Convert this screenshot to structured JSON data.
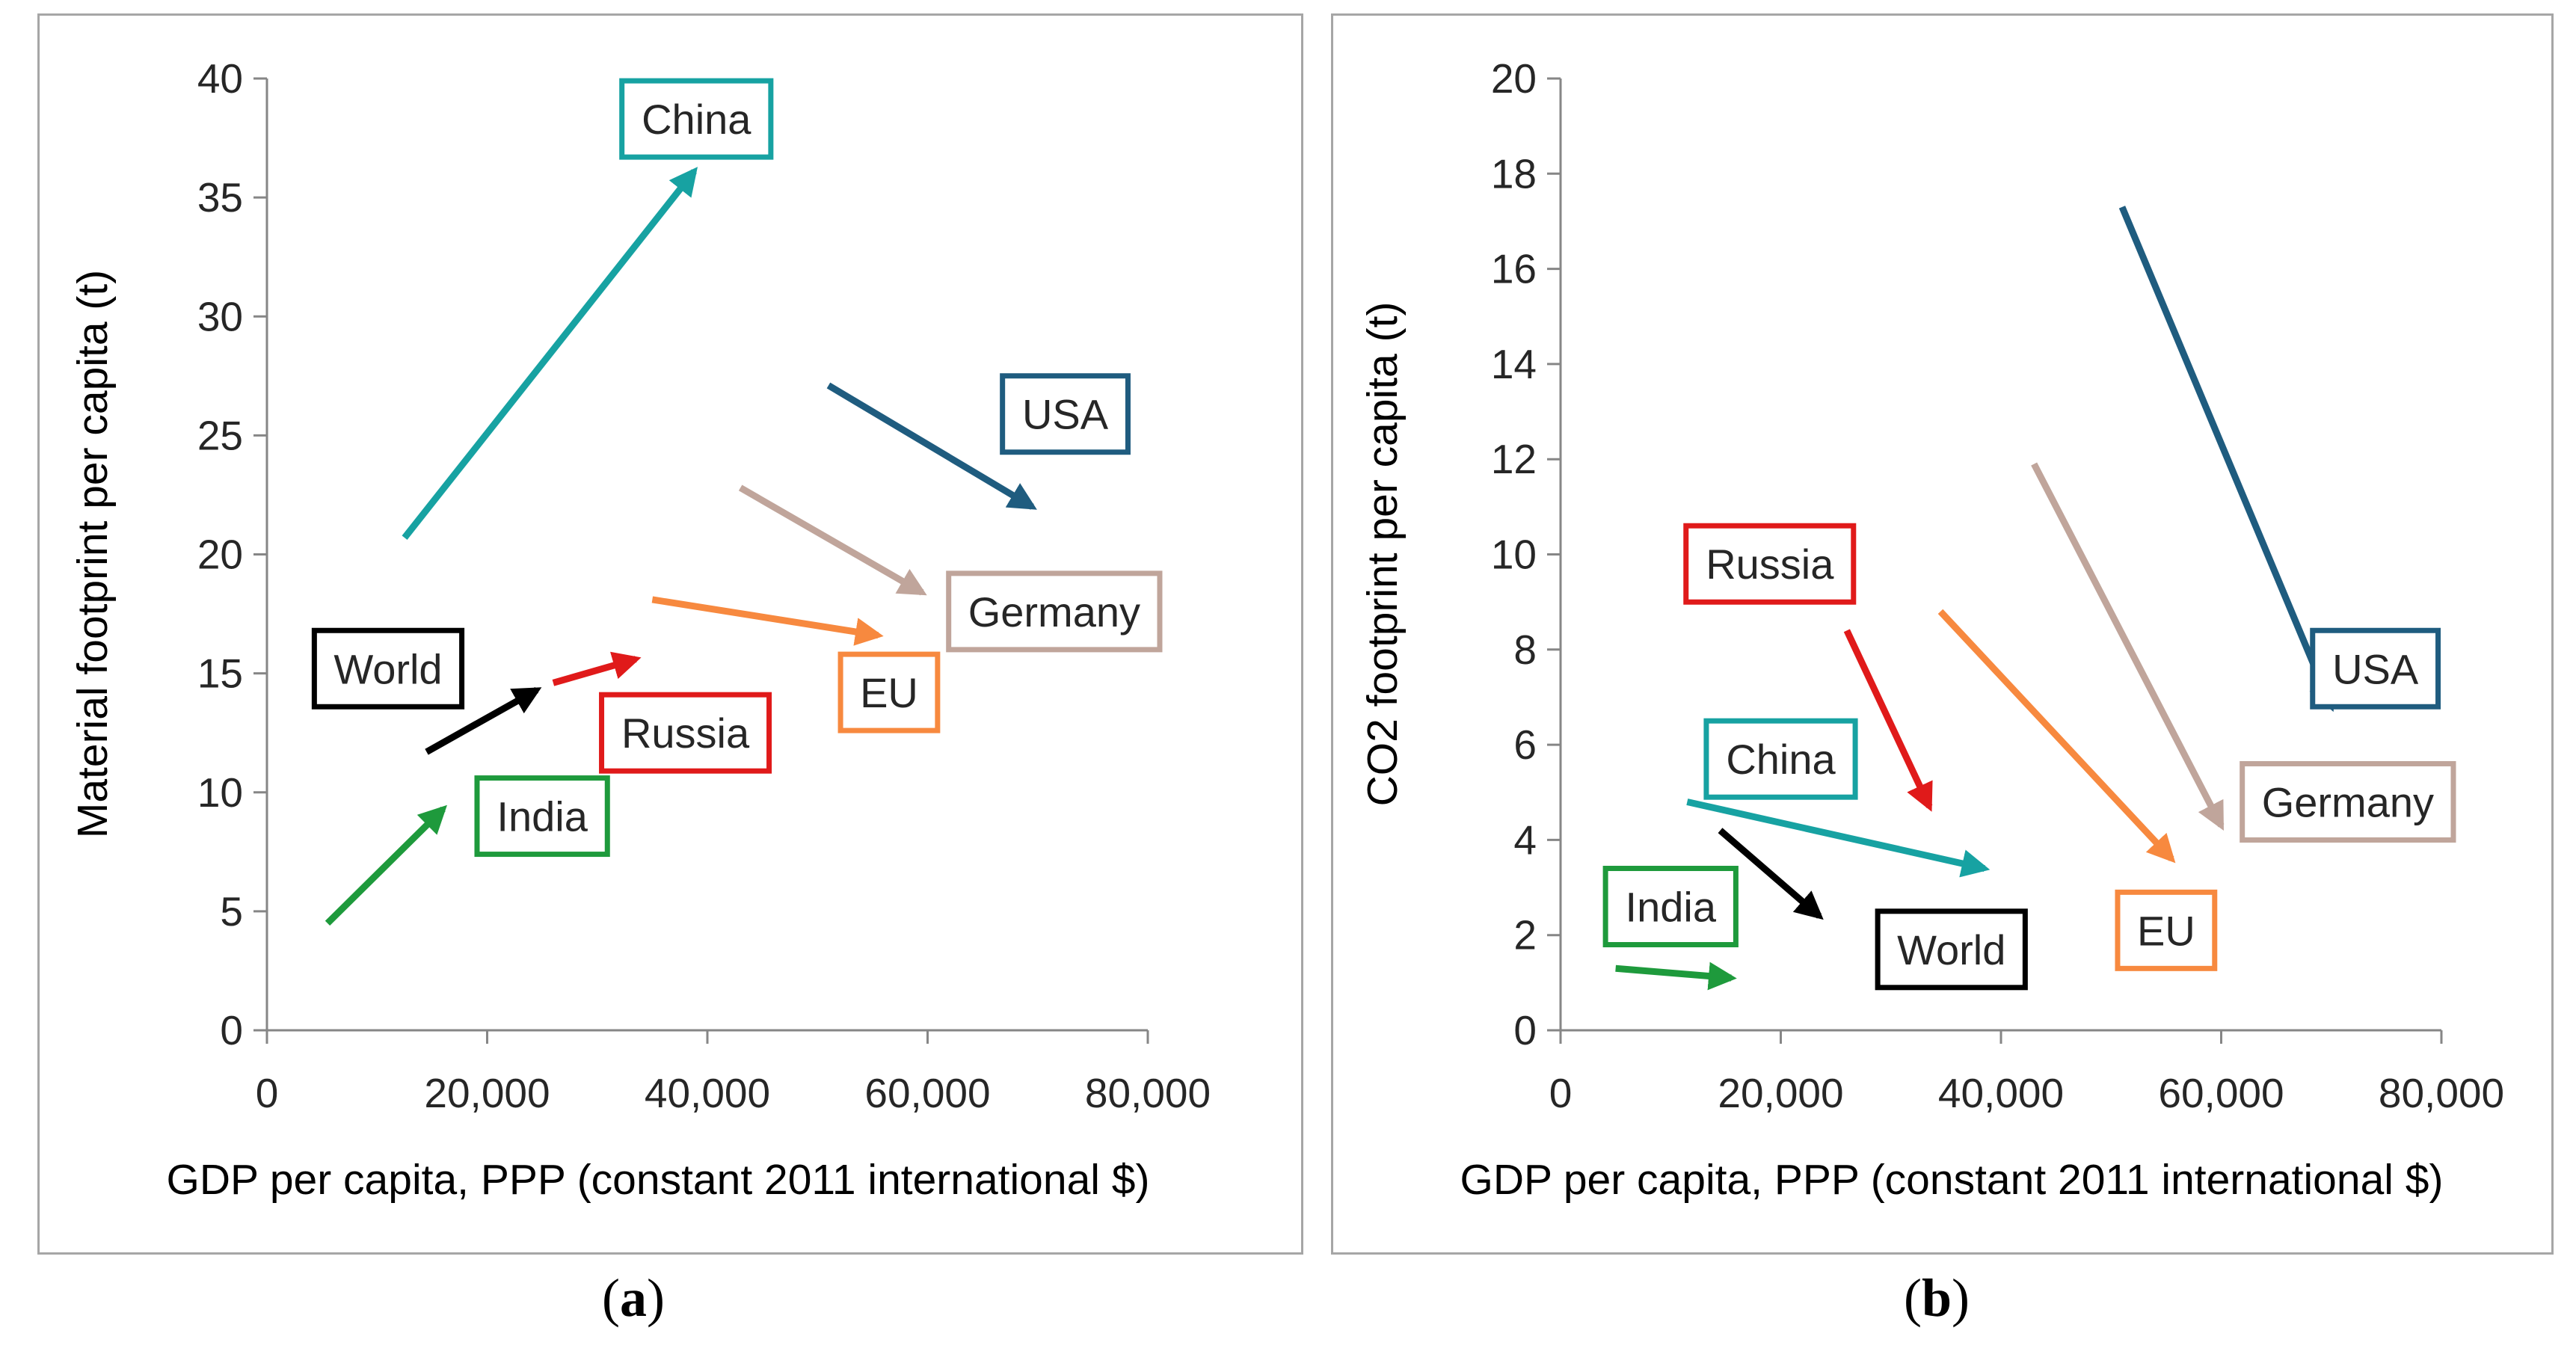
{
  "chart_data": [
    {
      "type": "arrow",
      "panel": "a",
      "caption_letter": "a",
      "xlabel": "GDP per capita, PPP (constant 2011 international $)",
      "ylabel": "Material footprint per capita (t)",
      "xlim": [
        0,
        80000
      ],
      "ylim": [
        0,
        40
      ],
      "x_ticks": [
        0,
        20000,
        40000,
        60000,
        80000
      ],
      "x_tick_labels": [
        "0",
        "20,000",
        "40,000",
        "60,000",
        "80,000"
      ],
      "y_ticks": [
        0,
        5,
        10,
        15,
        20,
        25,
        30,
        35,
        40
      ],
      "y_tick_labels": [
        "0",
        "5",
        "10",
        "15",
        "20",
        "25",
        "30",
        "35",
        "40"
      ],
      "series": [
        {
          "name": "China",
          "color": "#17a2a2",
          "from": [
            12500,
            20.7
          ],
          "to": [
            38800,
            36.1
          ],
          "label_at": [
            39000,
            38.3
          ]
        },
        {
          "name": "USA",
          "color": "#1f5c7f",
          "from": [
            51000,
            27.1
          ],
          "to": [
            69500,
            22.0
          ],
          "label_at": [
            72500,
            25.9
          ]
        },
        {
          "name": "Germany",
          "color": "#c0a59b",
          "from": [
            43000,
            22.8
          ],
          "to": [
            59500,
            18.4
          ],
          "label_at": [
            71500,
            17.6
          ]
        },
        {
          "name": "EU",
          "color": "#f7893f",
          "from": [
            35000,
            18.1
          ],
          "to": [
            55500,
            16.6
          ],
          "label_at": [
            56500,
            14.2
          ]
        },
        {
          "name": "Russia",
          "color": "#e01a1a",
          "from": [
            26000,
            14.6
          ],
          "to": [
            33500,
            15.6
          ],
          "label_at": [
            38000,
            12.5
          ]
        },
        {
          "name": "World",
          "color": "#000000",
          "from": [
            14500,
            11.7
          ],
          "to": [
            24500,
            14.3
          ],
          "label_at": [
            11000,
            15.2
          ]
        },
        {
          "name": "India",
          "color": "#1e9a3c",
          "from": [
            5500,
            4.5
          ],
          "to": [
            16000,
            9.3
          ],
          "label_at": [
            25000,
            9.0
          ]
        }
      ]
    },
    {
      "type": "arrow",
      "panel": "b",
      "caption_letter": "b",
      "xlabel": "GDP per capita, PPP (constant 2011 international $)",
      "ylabel": "CO2 footprint per capita (t)",
      "xlim": [
        0,
        80000
      ],
      "ylim": [
        0,
        20
      ],
      "x_ticks": [
        0,
        20000,
        40000,
        60000,
        80000
      ],
      "x_tick_labels": [
        "0",
        "20,000",
        "40,000",
        "60,000",
        "80,000"
      ],
      "y_ticks": [
        0,
        2,
        4,
        6,
        8,
        10,
        12,
        14,
        16,
        18,
        20
      ],
      "y_tick_labels": [
        "0",
        "2",
        "4",
        "6",
        "8",
        "10",
        "12",
        "14",
        "16",
        "18",
        "20"
      ],
      "series": [
        {
          "name": "USA",
          "color": "#1f5c7f",
          "from": [
            51000,
            17.3
          ],
          "to": [
            70000,
            6.8
          ],
          "label_at": [
            74000,
            7.6
          ]
        },
        {
          "name": "Germany",
          "color": "#c0a59b",
          "from": [
            43000,
            11.9
          ],
          "to": [
            60000,
            4.3
          ],
          "label_at": [
            71500,
            4.8
          ]
        },
        {
          "name": "EU",
          "color": "#f7893f",
          "from": [
            34500,
            8.8
          ],
          "to": [
            55500,
            3.6
          ],
          "label_at": [
            55000,
            2.1
          ]
        },
        {
          "name": "Russia",
          "color": "#e01a1a",
          "from": [
            26000,
            8.4
          ],
          "to": [
            33500,
            4.7
          ],
          "label_at": [
            19000,
            9.8
          ]
        },
        {
          "name": "China",
          "color": "#17a2a2",
          "from": [
            11500,
            4.8
          ],
          "to": [
            38500,
            3.4
          ],
          "label_at": [
            20000,
            5.7
          ]
        },
        {
          "name": "World",
          "color": "#000000",
          "from": [
            14500,
            4.2
          ],
          "to": [
            23500,
            2.4
          ],
          "label_at": [
            35500,
            1.7
          ]
        },
        {
          "name": "India",
          "color": "#1e9a3c",
          "from": [
            5000,
            1.3
          ],
          "to": [
            15500,
            1.1
          ],
          "label_at": [
            10000,
            2.6
          ]
        }
      ]
    }
  ]
}
